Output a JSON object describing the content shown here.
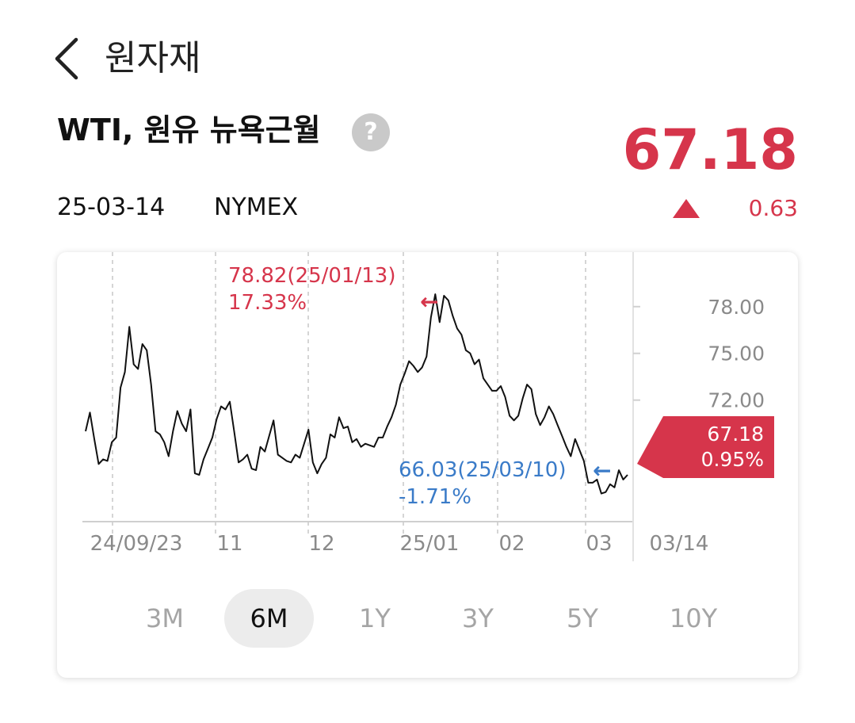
{
  "header": {
    "title": "원자재"
  },
  "instrument": {
    "name": "WTI, 원유 뉴욕근월",
    "help_glyph": "?",
    "date": "25-03-14",
    "exchange": "NYMEX",
    "price": "67.18",
    "change": "0.63",
    "change_direction": "up"
  },
  "colors": {
    "up": "#d6354b",
    "down": "#3a7bc8",
    "line": "#111111",
    "grid": "#cfcfcf"
  },
  "chart_data": {
    "type": "line",
    "y_ticks": [
      "78.00",
      "75.00",
      "72.00"
    ],
    "y_tick_values": [
      78,
      75,
      72
    ],
    "x_ticks": [
      "24/09/23",
      "11",
      "12",
      "25/01",
      "02",
      "03",
      "03/14"
    ],
    "ylim": [
      64.2,
      81.5
    ],
    "grid": "vertical-dashed",
    "high_label": "78.82(25/01/13)",
    "high_pct": "17.33%",
    "low_label": "66.03(25/03/10)",
    "low_pct": "-1.71%",
    "current_value": "67.18",
    "current_pct": "0.95%",
    "arrow_glyph": "←",
    "series": [
      {
        "values": [
          70.0,
          71.2,
          69.5,
          67.9,
          68.2,
          68.1,
          69.3,
          69.6,
          72.8,
          73.8,
          76.7,
          74.3,
          74.0,
          75.6,
          75.2,
          73.0,
          70.0,
          69.8,
          69.3,
          68.4,
          70.0,
          71.3,
          70.5,
          70.0,
          71.4,
          67.3,
          67.2,
          68.2,
          68.9,
          69.6,
          70.8,
          71.6,
          71.4,
          71.9,
          70.0,
          68.0,
          68.2,
          68.5,
          67.6,
          67.5,
          69.0,
          68.7,
          69.7,
          70.7,
          68.5,
          68.3,
          68.1,
          68.0,
          68.5,
          68.3,
          69.2,
          70.1,
          68.0,
          67.3,
          67.9,
          68.3,
          69.8,
          69.6,
          70.9,
          70.2,
          70.3,
          69.3,
          69.5,
          69.0,
          69.2,
          69.1,
          69.0,
          69.6,
          69.6,
          70.3,
          70.9,
          71.7,
          73.0,
          73.7,
          74.5,
          74.2,
          73.8,
          74.1,
          74.8,
          77.3,
          78.8,
          77.0,
          78.7,
          78.4,
          77.4,
          76.6,
          76.2,
          75.2,
          75.0,
          74.3,
          74.6,
          73.4,
          73.0,
          72.6,
          72.6,
          72.9,
          72.2,
          71.0,
          70.7,
          71.0,
          72.1,
          73.0,
          72.7,
          71.1,
          70.4,
          70.9,
          71.6,
          71.1,
          70.4,
          69.7,
          69.0,
          68.4,
          69.5,
          68.8,
          68.1,
          66.7,
          66.7,
          66.9,
          66.0,
          66.1,
          66.6,
          66.4,
          67.5,
          66.9,
          67.2
        ]
      }
    ]
  },
  "ranges": {
    "options": [
      "3M",
      "6M",
      "1Y",
      "3Y",
      "5Y",
      "10Y"
    ],
    "selected": "6M"
  }
}
